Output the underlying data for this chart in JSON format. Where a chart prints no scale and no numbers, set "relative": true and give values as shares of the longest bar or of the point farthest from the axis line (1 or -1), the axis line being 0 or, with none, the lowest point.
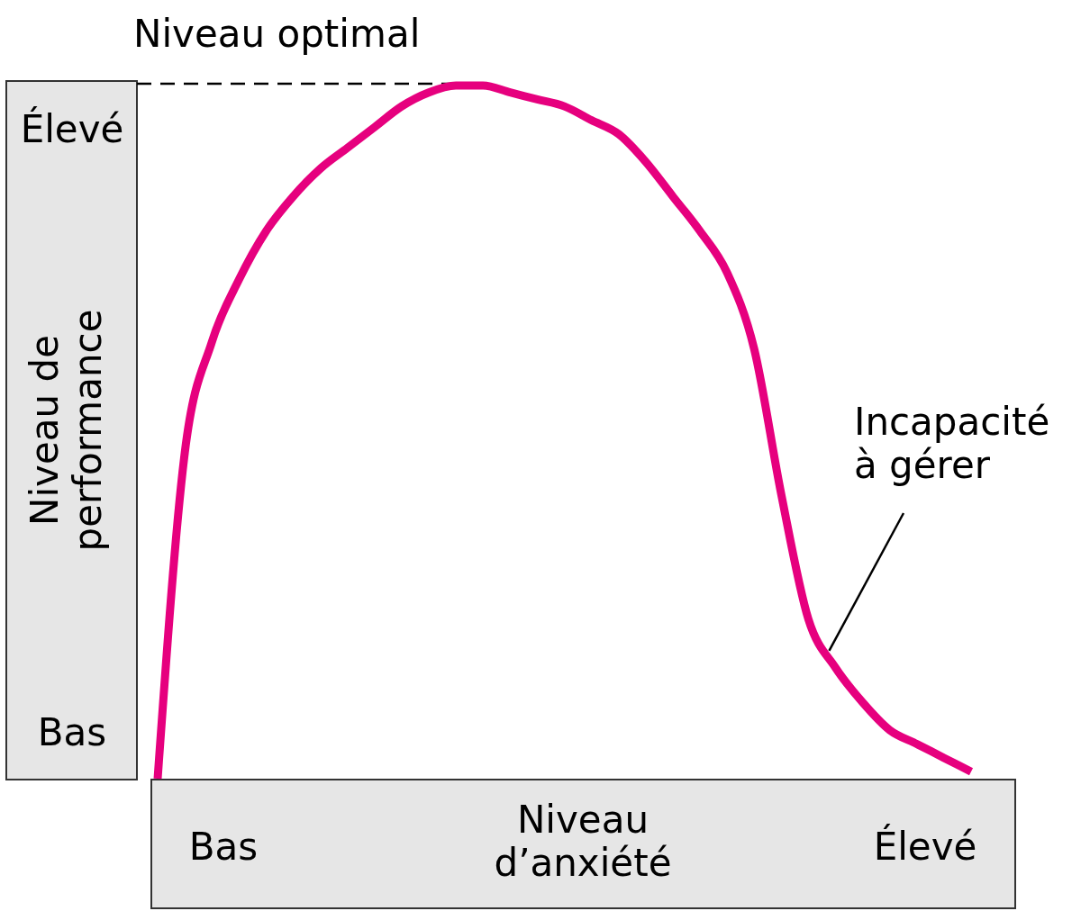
{
  "chart_data": {
    "type": "line",
    "relative": true,
    "xlabel": "Niveau d’anxiété",
    "ylabel": "Niveau de performance",
    "categories": [
      null,
      null,
      null,
      null,
      null,
      null,
      null,
      null,
      null,
      null,
      null,
      null,
      null,
      null,
      null,
      null,
      null,
      null,
      null,
      null,
      null,
      null,
      null,
      null,
      null,
      null,
      null,
      null,
      null,
      null,
      null
    ],
    "series": [
      {
        "color": "#e6007e",
        "values": [
          0,
          0.47,
          0.63,
          0.72,
          0.79,
          0.84,
          0.88,
          0.91,
          0.94,
          0.97,
          0.99,
          1.0,
          1.0,
          0.99,
          0.98,
          0.97,
          0.95,
          0.93,
          0.89,
          0.84,
          0.79,
          0.73,
          0.62,
          0.41,
          0.23,
          0.16,
          0.11,
          0.07,
          0.05,
          0.03,
          0.01
        ]
      }
    ],
    "ref_lines": [
      {
        "axis": "y",
        "value": 1,
        "label": "Niveau optimal",
        "line_style": "dashed",
        "color": "#000000"
      }
    ],
    "annotations": [
      "Bas",
      "Élevé",
      "Bas",
      "Élevé",
      "Incapacité à gérer"
    ],
    "marker": "none",
    "line_style": "solid"
  }
}
